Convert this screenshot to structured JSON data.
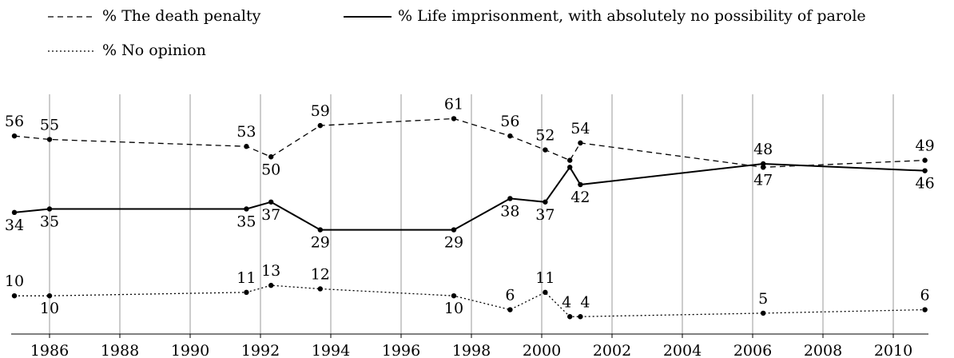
{
  "chart_data": {
    "type": "line",
    "x": [
      1985.0,
      1986.0,
      1991.6,
      1992.3,
      1993.7,
      1997.5,
      1999.1,
      2000.1,
      2000.8,
      2001.1,
      2006.3,
      2010.9
    ],
    "series": [
      {
        "name": "% The death penalty",
        "color": "#000000",
        "style": "dashed",
        "values": [
          56,
          55,
          53,
          50,
          59,
          61,
          56,
          52,
          49,
          54,
          47,
          49
        ],
        "value_labels": [
          "56",
          "55",
          "53",
          "50",
          "59",
          "61",
          "56",
          "52",
          null,
          "54",
          "47",
          "49"
        ]
      },
      {
        "name": "% Life imprisonment, with absolutely no possibility of parole",
        "color": "#000000",
        "style": "solid",
        "values": [
          34,
          35,
          35,
          37,
          29,
          29,
          38,
          37,
          47,
          42,
          48,
          46
        ],
        "value_labels": [
          "34",
          "35",
          "35",
          "37",
          "29",
          "29",
          "38",
          "37",
          null,
          "42",
          "48",
          "46"
        ]
      },
      {
        "name": "% No opinion",
        "color": "#000000",
        "style": "dotted",
        "values": [
          10,
          10,
          11,
          13,
          12,
          10,
          6,
          11,
          4,
          4,
          5,
          6
        ],
        "value_labels": [
          "10",
          "10",
          "11",
          "13",
          "12",
          "10",
          "6",
          "11",
          "4",
          "4",
          "5",
          "6"
        ]
      }
    ],
    "xlim": [
      1985,
      2011
    ],
    "xticks": [
      1986,
      1988,
      1990,
      1992,
      1994,
      1996,
      1998,
      2000,
      2002,
      2004,
      2006,
      2008,
      2010
    ],
    "ylim": [
      -1,
      68
    ],
    "grid": true
  }
}
